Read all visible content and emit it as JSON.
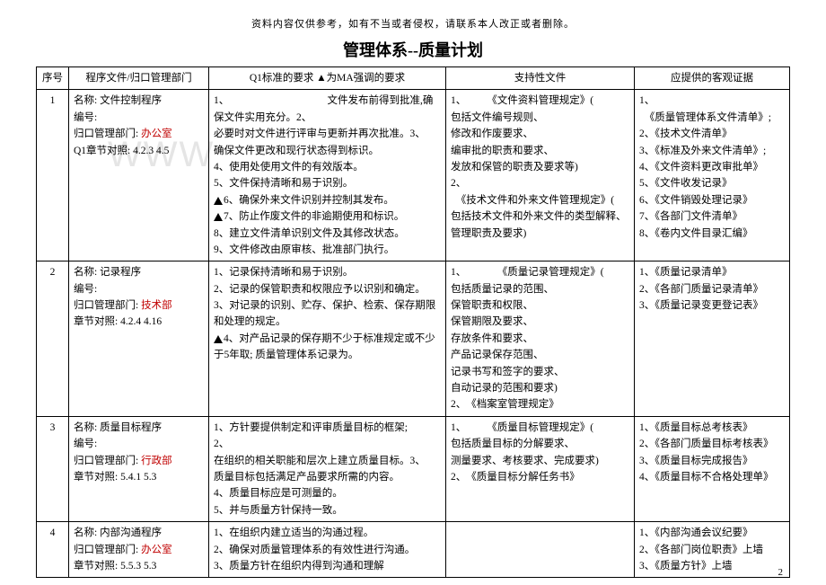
{
  "disclaimer": "资料内容仅供参考，如有不当或者侵权，请联系本人改正或者删除。",
  "title": "管理体系--质量计划",
  "watermark": "WWW",
  "pagenum": "2",
  "headers": {
    "seq": "序号",
    "prog": "程序文件/归口管理部门",
    "req": "Q1标准的要求 ▲为MA强调的要求",
    "sup": "支持性文件",
    "evi": "应提供的客观证据"
  },
  "rows": [
    {
      "seq": "1",
      "prog_name_label": "名称:",
      "prog_name": "文件控制程序",
      "prog_num_label": "编号:",
      "prog_dept_label": "归口管理部门:",
      "prog_dept": "办公室",
      "prog_sec_label": "Q1章节对照:",
      "prog_sec": "4.2.3  4.5",
      "req1": "1、　　　　　　　　　　文件发布前得到批准,确保文件实用充分。2、",
      "req2": "必要时对文件进行评审与更新并再次批准。3、",
      "req3": "确保文件更改和现行状态得到标识。",
      "req4": "4、使用处使用文件的有效版本。",
      "req5": "5、文件保持清晰和易于识别。",
      "req6": "6、确保外来文件识别并控制其发布。",
      "req7": "7、防止作废文件的非逾期使用和标识。",
      "req8": "8、建立文件清单识别文件及其修改状态。",
      "req9": "9、文件修改由原审核、批准部门执行。",
      "sup1": "1、　　　《文件资料管理规定》(",
      "sup2": "包括文件编号规则、",
      "sup3": "修改和作废要求、",
      "sup4": "编审批的职责和要求、",
      "sup5": "发放和保管的职责及要求等)",
      "sup6b": "2、",
      "sup6": "　《技术文件和外来文件管理规定》(",
      "sup7": "包括技术文件和外来文件的类型解释、管理职责及要求)",
      "evi1": "1、",
      "evi1b": "　《质量管理体系文件清单》;",
      "evi2": "2、《技术文件清单》",
      "evi3": "3、《标准及外来文件清单》;",
      "evi4": "4、《文件资料更改审批单》",
      "evi5": "5、《文件收发记录》",
      "evi6": "6、《文件销毁处理记录》",
      "evi7": "7、《各部门文件清单》",
      "evi8": "8、《卷内文件目录汇编》"
    },
    {
      "seq": "2",
      "prog_name_label": "名称:",
      "prog_name": "记录程序",
      "prog_num_label": "编号:",
      "prog_dept_label": "归口管理部门:",
      "prog_dept": "技术部",
      "prog_sec_label": "章节对照:",
      "prog_sec": "4.2.4  4.16",
      "req1": "1、记录保持清晰和易于识别。",
      "req2": "2、记录的保管职责和权限应予以识别和确定。",
      "req3": "3、对记录的识别、贮存、保护、检索、保存期限和处理的规定。",
      "req4": "4、对产品记录的保存期不少于标准规定或不少于5年取; 质量管理体系记录为。",
      "sup1": "1、　　　　《质量记录管理规定》(",
      "sup2": "包括质量记录的范围、",
      "sup3": "保管职责和权限、",
      "sup4": "保管期限及要求、",
      "sup5": "存放条件和要求、",
      "sup6": "产品记录保存范围、",
      "sup7": "记录书写和签字的要求、",
      "sup8": "自动记录的范围和要求)",
      "sup9": "2、　《档案室管理规定》",
      "evi1": "1、《质量记录清单》",
      "evi2": "2、《各部门质量记录清单》",
      "evi3": "3、《质量记录变更登记表》"
    },
    {
      "seq": "3",
      "prog_name_label": "名称:",
      "prog_name": "质量目标程序",
      "prog_num_label": "编号:",
      "prog_dept_label": "归口管理部门:",
      "prog_dept": "行政部",
      "prog_sec_label": "章节对照:",
      "prog_sec": "5.4.1  5.3",
      "req1": "1、方针要提供制定和评审质量目标的框架;",
      "req2": "2、",
      "req2b": "在组织的相关职能和层次上建立质量目标。3、",
      "req3": "质量目标包括满足产品要求所需的内容。",
      "req4": "4、质量目标应是可测量的。",
      "req5": "5、并与质量方针保持一致。",
      "sup1": "1、　　　《质量目标管理规定》(",
      "sup2": "包括质量目标的分解要求、",
      "sup3": "测量要求、考核要求、完成要求)",
      "sup4": "2、　《质量目标分解任务书》",
      "evi1": "1、《质量目标总考核表》",
      "evi2": "2、《各部门质量目标考核表》",
      "evi3": "3、《质量目标完成报告》",
      "evi4": "4、《质量目标不合格处理单》"
    },
    {
      "seq": "4",
      "prog_name_label": "名称:",
      "prog_name": "内部沟通程序",
      "prog_dept_label": "归口管理部门:",
      "prog_dept": "办公室",
      "prog_sec_label": "章节对照:",
      "prog_sec": "5.5.3  5.3",
      "req1": "1、在组织内建立适当的沟通过程。",
      "req2": "2、确保对质量管理体系的有效性进行沟通。",
      "req3": "3、质量方针在组织内得到沟通和理解",
      "evi1": "1、《内部沟通会议纪要》",
      "evi2": "2、《各部门岗位职责》上墙",
      "evi3": "3、《质量方针》上墙"
    }
  ]
}
